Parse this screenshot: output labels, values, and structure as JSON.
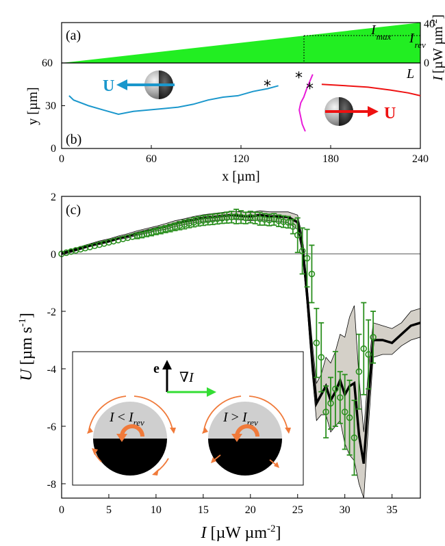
{
  "colors": {
    "intensity_fill": "#22ee22",
    "traj_blue": "#1a97cc",
    "traj_magenta": "#e81ad8",
    "traj_red": "#ee1111",
    "model_line": "#000000",
    "model_band": "#d4d0c8",
    "data_green": "#2a8f1e",
    "zero_line": "#8c8c8c",
    "inset_orange": "#f07a3a",
    "grad_arrow": "#33dd33"
  },
  "panel_a": {
    "label": "(a)",
    "ytick_top": "40",
    "ytick_bottom": "0",
    "left_value": "60",
    "imax_text": "I",
    "imax_sub": "max",
    "irev_text": "I",
    "irev_sub": "rev",
    "yaxis_label_I": "I",
    "yaxis_label_unit": "[µW µm",
    "yaxis_label_exp": "-2",
    "yaxis_label_close": "]",
    "intensity_range": [
      0,
      40
    ],
    "I_rev": 26
  },
  "panel_b": {
    "label": "(b)",
    "L_label": "L",
    "U_label": "U",
    "star": "*",
    "ylabel": "y [µm]",
    "xlabel": "x [µm]",
    "xticks": [
      "0",
      "60",
      "120",
      "180",
      "240"
    ],
    "yticks": [
      "0",
      "30"
    ],
    "xlim": [
      0,
      240
    ],
    "ylim": [
      0,
      60
    ]
  },
  "panel_c": {
    "label": "(c)",
    "ylabel_U": "U",
    "ylabel_unit": "[µm s",
    "ylabel_exp": "-1",
    "ylabel_close": "]",
    "xlabel_I": "I",
    "xlabel_unit": "[µW µm",
    "xlabel_exp": "-2",
    "xlabel_close": "]",
    "xticks": [
      "0",
      "5",
      "10",
      "15",
      "20",
      "25",
      "30",
      "35"
    ],
    "yticks": [
      "2",
      "0",
      "-2",
      "-4",
      "-6",
      "-8"
    ]
  },
  "inset": {
    "e_label": "e",
    "grad_label": "∇I",
    "left_I": "I",
    "left_cmp": " < ",
    "left_Irev": "I",
    "left_sub": "rev",
    "right_I": "I",
    "right_cmp": " > ",
    "right_Irev": "I",
    "right_sub": "rev"
  },
  "chart_data": [
    {
      "type": "area",
      "title": "",
      "ylabel": "I [µW µm-2]",
      "x": [
        0,
        240
      ],
      "values": [
        0,
        40
      ],
      "ylim": [
        0,
        40
      ],
      "annotations": [
        "I_max",
        "I_rev",
        "L"
      ]
    },
    {
      "type": "line",
      "xlabel": "x [µm]",
      "ylabel": "y [µm]",
      "xlim": [
        0,
        240
      ],
      "ylim": [
        0,
        60
      ],
      "series": [
        {
          "points": [
            [
              145,
              44
            ],
            [
              138,
              42
            ],
            [
              128,
              40
            ],
            [
              118,
              37
            ],
            [
              108,
              36
            ],
            [
              98,
              34
            ],
            [
              88,
              31
            ],
            [
              78,
              29
            ],
            [
              68,
              28
            ],
            [
              58,
              27
            ],
            [
              48,
              26
            ],
            [
              38,
              24
            ],
            [
              28,
              27
            ],
            [
              18,
              30
            ],
            [
              8,
              34
            ],
            [
              5,
              37
            ]
          ]
        },
        {
          "points": [
            [
              168,
              52
            ],
            [
              166,
              47
            ],
            [
              164,
              42
            ],
            [
              162,
              36
            ],
            [
              160,
              32
            ],
            [
              159,
              27
            ],
            [
              160,
              22
            ],
            [
              161,
              17
            ],
            [
              163,
              12
            ]
          ]
        },
        {
          "points": [
            [
              174,
              45
            ],
            [
              190,
              44
            ],
            [
              205,
              43
            ],
            [
              220,
              41
            ],
            [
              232,
              39
            ],
            [
              240,
              37
            ]
          ]
        }
      ]
    },
    {
      "type": "line",
      "xlabel": "I [µW µm-2]",
      "ylabel": "U [µm s-1]",
      "xlim": [
        0,
        38
      ],
      "ylim": [
        -8.5,
        2
      ],
      "series": [
        {
          "name": "",
          "x": [
            0,
            1,
            2,
            3,
            4,
            5,
            6,
            7,
            8,
            9,
            10,
            11,
            12,
            13,
            14,
            15,
            16,
            17,
            18,
            19,
            20,
            21,
            22,
            23,
            24,
            25,
            25.5,
            26,
            26.5,
            27,
            27.5,
            28,
            28.5,
            29,
            29.5,
            30,
            30.5,
            31,
            31.5,
            32,
            32.5,
            33,
            34,
            35,
            36,
            37,
            38
          ],
          "values": [
            0,
            0.1,
            0.2,
            0.3,
            0.38,
            0.45,
            0.55,
            0.62,
            0.72,
            0.8,
            0.88,
            0.95,
            1.05,
            1.12,
            1.18,
            1.25,
            1.28,
            1.32,
            1.35,
            1.32,
            1.3,
            1.35,
            1.3,
            1.3,
            1.28,
            1.1,
            0.3,
            -1.4,
            -3.5,
            -5.2,
            -4.9,
            -4.6,
            -5.1,
            -4.8,
            -4.4,
            -4.9,
            -4.6,
            -4.5,
            -6.3,
            -7.3,
            -5.0,
            -3.0,
            -3.0,
            -3.1,
            -2.8,
            -2.5,
            -2.4
          ],
          "band_low": [
            0,
            0.05,
            0.15,
            0.25,
            0.32,
            0.4,
            0.5,
            0.55,
            0.65,
            0.72,
            0.8,
            0.85,
            0.95,
            1.02,
            1.08,
            1.12,
            1.15,
            1.18,
            1.2,
            1.18,
            1.15,
            1.18,
            1.15,
            1.12,
            1.08,
            0.85,
            0.0,
            -1.8,
            -4.0,
            -5.8,
            -5.6,
            -5.6,
            -6.2,
            -6.0,
            -5.8,
            -6.6,
            -7.0,
            -7.2,
            -8.0,
            -8.5,
            -6.0,
            -3.6,
            -3.5,
            -3.5,
            -3.2,
            -3.0,
            -2.9
          ],
          "band_high": [
            0.05,
            0.15,
            0.25,
            0.35,
            0.45,
            0.52,
            0.62,
            0.7,
            0.8,
            0.88,
            0.96,
            1.05,
            1.15,
            1.22,
            1.3,
            1.36,
            1.4,
            1.44,
            1.48,
            1.46,
            1.44,
            1.5,
            1.46,
            1.46,
            1.46,
            1.35,
            0.6,
            -1.0,
            -2.9,
            -4.5,
            -4.2,
            -3.6,
            -3.8,
            -3.4,
            -2.8,
            -2.9,
            -2.2,
            -1.8,
            -4.3,
            -6.2,
            -4.0,
            -2.4,
            -2.5,
            -2.6,
            -2.4,
            -2.0,
            -1.9
          ]
        },
        {
          "name": "",
          "x": [
            0,
            0.5,
            1,
            1.5,
            2,
            2.5,
            3,
            3.5,
            4,
            4.5,
            5,
            5.5,
            6,
            6.5,
            7,
            7.5,
            8,
            8.5,
            9,
            9.5,
            10,
            10.5,
            11,
            11.5,
            12,
            12.5,
            13,
            13.5,
            14,
            14.5,
            15,
            15.5,
            16,
            16.5,
            17,
            17.5,
            18,
            18.5,
            19,
            19.5,
            20,
            20.5,
            21,
            21.5,
            22,
            22.5,
            23,
            23.5,
            24,
            24.5,
            25,
            25.5,
            26,
            26.5,
            27,
            27.5,
            28,
            28.5,
            29,
            29.5,
            30,
            30.5,
            31,
            31.5,
            32,
            32.5,
            33
          ],
          "values": [
            0,
            0.04,
            0.08,
            0.12,
            0.16,
            0.2,
            0.24,
            0.28,
            0.32,
            0.36,
            0.4,
            0.44,
            0.48,
            0.52,
            0.56,
            0.6,
            0.63,
            0.66,
            0.7,
            0.74,
            0.78,
            0.82,
            0.86,
            0.9,
            0.94,
            0.98,
            1.02,
            1.06,
            1.1,
            1.13,
            1.16,
            1.18,
            1.2,
            1.22,
            1.24,
            1.26,
            1.28,
            1.3,
            1.28,
            1.25,
            1.28,
            1.25,
            1.22,
            1.2,
            1.18,
            1.2,
            1.15,
            1.12,
            1.1,
            0.95,
            0.65,
            0.1,
            -0.15,
            -0.7,
            -3.1,
            -3.6,
            -5.5,
            -5.2,
            -4.7,
            -5.0,
            -5.5,
            -5.7,
            -6.4,
            -4.1,
            -3.3,
            -3.5,
            -2.9
          ],
          "err": [
            0.02,
            0.03,
            0.04,
            0.05,
            0.05,
            0.05,
            0.06,
            0.06,
            0.06,
            0.07,
            0.07,
            0.08,
            0.08,
            0.08,
            0.09,
            0.09,
            0.1,
            0.1,
            0.1,
            0.11,
            0.11,
            0.12,
            0.12,
            0.13,
            0.13,
            0.14,
            0.15,
            0.15,
            0.16,
            0.16,
            0.17,
            0.17,
            0.18,
            0.18,
            0.18,
            0.19,
            0.2,
            0.25,
            0.22,
            0.2,
            0.2,
            0.2,
            0.22,
            0.2,
            0.2,
            0.2,
            0.2,
            0.2,
            0.2,
            0.25,
            0.6,
            0.8,
            1.0,
            1.0,
            1.2,
            1.2,
            0.9,
            0.9,
            1.3,
            0.9,
            1.3,
            1.3,
            1.3,
            1.3,
            1.6,
            1.2,
            0.9
          ]
        }
      ]
    }
  ]
}
